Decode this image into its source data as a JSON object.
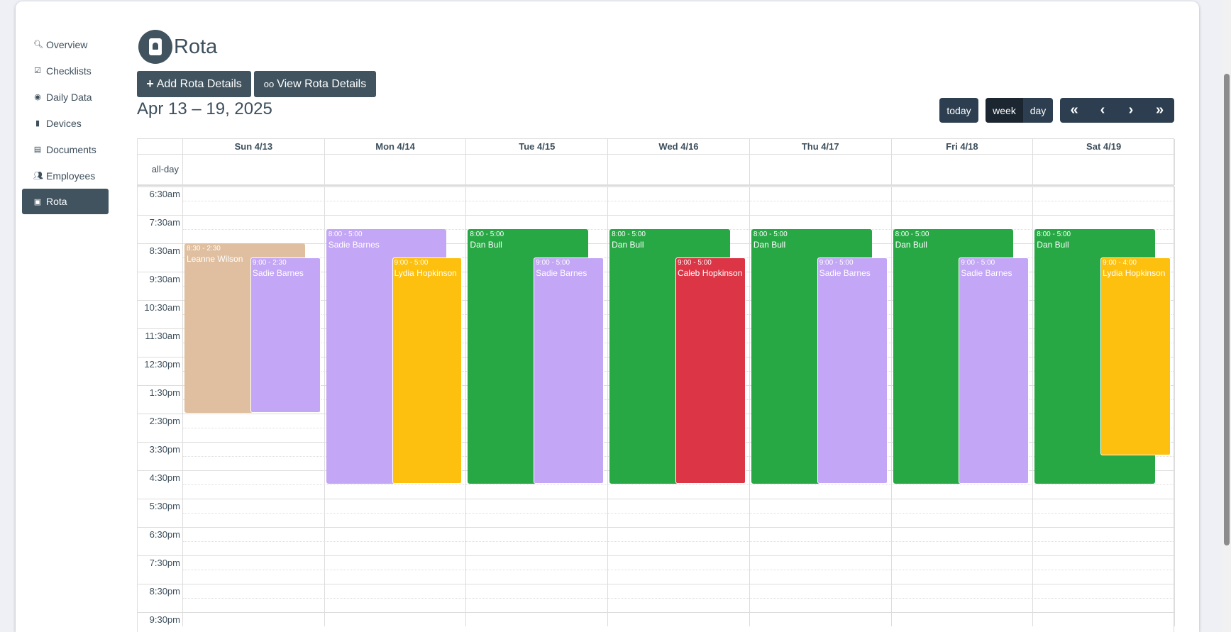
{
  "sidebar": {
    "items": [
      {
        "label": "Overview",
        "icon": "search-icon",
        "glyph": "🔍︎"
      },
      {
        "label": "Checklists",
        "icon": "checkbox-icon",
        "glyph": "☑"
      },
      {
        "label": "Daily Data",
        "icon": "dot-circle-icon",
        "glyph": "◉"
      },
      {
        "label": "Devices",
        "icon": "door-icon",
        "glyph": "▮"
      },
      {
        "label": "Documents",
        "icon": "file-pdf-icon",
        "glyph": "▤"
      },
      {
        "label": "Employees",
        "icon": "users-icon",
        "glyph": "👥︎"
      },
      {
        "label": "Rota",
        "icon": "address-book-icon",
        "glyph": "▣",
        "active": true
      }
    ]
  },
  "page": {
    "title": "Rota",
    "add_label": "Add Rota Details",
    "view_label": "View Rota Details",
    "add_icon": "plus-icon",
    "view_icon": "glasses-icon"
  },
  "calendar": {
    "range_title": "Apr 13 – 19, 2025",
    "today_label": "today",
    "week_label": "week",
    "day_label": "day",
    "active_view": "week",
    "nav": {
      "prev_year": "«",
      "prev": "‹",
      "next": "›",
      "next_year": "»"
    },
    "allday_label": "all-day",
    "days": [
      "Sun 4/13",
      "Mon 4/14",
      "Tue 4/15",
      "Wed 4/16",
      "Thu 4/17",
      "Fri 4/18",
      "Sat 4/19"
    ],
    "time_labels": [
      "6:30am",
      "7:30am",
      "8:30am",
      "9:30am",
      "10:30am",
      "11:30am",
      "12:30pm",
      "1:30pm",
      "2:30pm",
      "3:30pm",
      "4:30pm",
      "5:30pm",
      "6:30pm",
      "7:30pm",
      "8:30pm",
      "9:30pm"
    ],
    "events": [
      {
        "day": 0,
        "time": "8:30 - 2:30",
        "name": "Leanne Wilson",
        "start": "08:30",
        "end": "14:30",
        "color": "#dfbf9f"
      },
      {
        "day": 0,
        "time": "9:00 - 2:30",
        "name": "Sadie Barnes",
        "start": "09:00",
        "end": "14:30",
        "color": "#c3a6f5"
      },
      {
        "day": 1,
        "time": "8:00 - 5:00",
        "name": "Sadie Barnes",
        "start": "08:00",
        "end": "17:00",
        "color": "#c3a6f5"
      },
      {
        "day": 1,
        "time": "9:00 - 5:00",
        "name": "Lydia Hopkinson",
        "start": "09:00",
        "end": "17:00",
        "color": "#fdc00e"
      },
      {
        "day": 2,
        "time": "8:00 - 5:00",
        "name": "Dan Bull",
        "start": "08:00",
        "end": "17:00",
        "color": "#28a745"
      },
      {
        "day": 2,
        "time": "9:00 - 5:00",
        "name": "Sadie Barnes",
        "start": "09:00",
        "end": "17:00",
        "color": "#c3a6f5"
      },
      {
        "day": 3,
        "time": "8:00 - 5:00",
        "name": "Dan Bull",
        "start": "08:00",
        "end": "17:00",
        "color": "#28a745"
      },
      {
        "day": 3,
        "time": "9:00 - 5:00",
        "name": "Caleb Hopkinson",
        "start": "09:00",
        "end": "17:00",
        "color": "#dc3545"
      },
      {
        "day": 4,
        "time": "8:00 - 5:00",
        "name": "Dan Bull",
        "start": "08:00",
        "end": "17:00",
        "color": "#28a745"
      },
      {
        "day": 4,
        "time": "9:00 - 5:00",
        "name": "Sadie Barnes",
        "start": "09:00",
        "end": "17:00",
        "color": "#c3a6f5"
      },
      {
        "day": 5,
        "time": "8:00 - 5:00",
        "name": "Dan Bull",
        "start": "08:00",
        "end": "17:00",
        "color": "#28a745"
      },
      {
        "day": 5,
        "time": "9:00 - 5:00",
        "name": "Sadie Barnes",
        "start": "09:00",
        "end": "17:00",
        "color": "#c3a6f5"
      },
      {
        "day": 6,
        "time": "8:00 - 5:00",
        "name": "Dan Bull",
        "start": "08:00",
        "end": "17:00",
        "color": "#28a745"
      },
      {
        "day": 6,
        "time": "9:00 - 4:00",
        "name": "Lydia Hopkinson",
        "start": "09:00",
        "end": "16:00",
        "color": "#fdc00e"
      }
    ]
  }
}
